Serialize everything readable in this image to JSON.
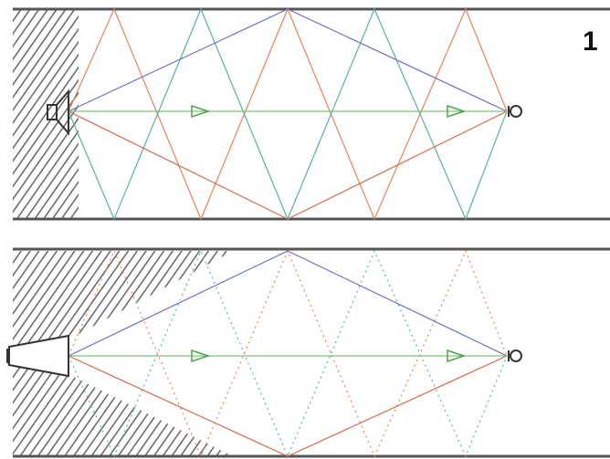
{
  "label": "1"
}
